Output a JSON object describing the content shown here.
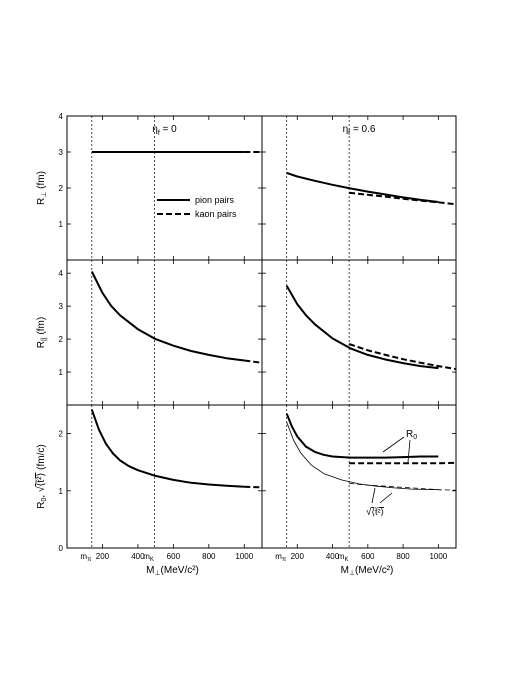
{
  "chart_data": {
    "type": "line",
    "layout": "3x2 panel grid with shared axes",
    "xlabel_main": "M",
    "xlabel_sub": "⊥",
    "xlabel_unit": "(MeV/c²)",
    "xlim": [
      0,
      1100
    ],
    "x_ticks": [
      "200",
      "400",
      "600",
      "800",
      "1000"
    ],
    "x_markers": [
      {
        "main": "m",
        "sub": "π",
        "value": 140
      },
      {
        "main": "m",
        "sub": "K",
        "value": 494
      }
    ],
    "columns": [
      {
        "title_main": "η",
        "title_sub": "f",
        "title_rest": " = 0"
      },
      {
        "title_main": "η",
        "title_sub": "f",
        "title_rest": " = 0.6"
      }
    ],
    "legend": {
      "position": "center-right of top-left panel",
      "entries": [
        {
          "label": "pion pairs",
          "style": "solid"
        },
        {
          "label": "kaon pairs",
          "style": "dashed"
        }
      ]
    },
    "rows": [
      {
        "ylabel_main": "R",
        "ylabel_sub": "⊥",
        "ylabel_unit": " (fm)",
        "ylim": [
          0,
          4
        ],
        "y_ticks": [
          "1",
          "2",
          "3",
          "4"
        ],
        "panels": [
          {
            "series": [
              {
                "style": "solid-bold",
                "x": [
                  140,
                  300,
                  500,
                  700,
                  900,
                  1000
                ],
                "y": [
                  3.0,
                  3.0,
                  3.0,
                  3.0,
                  3.0,
                  3.0
                ]
              },
              {
                "style": "dashed-bold",
                "x": [
                  1000,
                  1100
                ],
                "y": [
                  3.0,
                  3.0
                ]
              }
            ]
          },
          {
            "series": [
              {
                "style": "solid-bold",
                "x": [
                  140,
                  200,
                  300,
                  400,
                  500,
                  600,
                  700,
                  800,
                  900,
                  1000
                ],
                "y": [
                  2.42,
                  2.32,
                  2.2,
                  2.09,
                  1.99,
                  1.9,
                  1.82,
                  1.74,
                  1.67,
                  1.61
                ]
              },
              {
                "style": "dashed-bold",
                "x": [
                  494,
                  600,
                  700,
                  800,
                  900,
                  1000,
                  1100
                ],
                "y": [
                  1.87,
                  1.81,
                  1.76,
                  1.7,
                  1.65,
                  1.6,
                  1.55
                ]
              }
            ]
          }
        ]
      },
      {
        "ylabel_main": "R",
        "ylabel_sub": "||",
        "ylabel_unit": " (fm)",
        "ylim": [
          0,
          4.4
        ],
        "y_ticks": [
          "1",
          "2",
          "3",
          "4"
        ],
        "panels": [
          {
            "series": [
              {
                "style": "solid-bold",
                "x": [
                  140,
                  200,
                  250,
                  300,
                  400,
                  500,
                  600,
                  700,
                  800,
                  900,
                  1000
                ],
                "y": [
                  4.05,
                  3.4,
                  3.0,
                  2.72,
                  2.3,
                  2.0,
                  1.8,
                  1.64,
                  1.52,
                  1.42,
                  1.35
                ]
              },
              {
                "style": "dashed-bold",
                "x": [
                  1000,
                  1100
                ],
                "y": [
                  1.35,
                  1.28
                ]
              }
            ]
          },
          {
            "series": [
              {
                "style": "solid-bold",
                "x": [
                  140,
                  200,
                  250,
                  300,
                  400,
                  500,
                  600,
                  700,
                  800,
                  900,
                  1000
                ],
                "y": [
                  3.62,
                  3.06,
                  2.72,
                  2.45,
                  2.02,
                  1.72,
                  1.52,
                  1.38,
                  1.27,
                  1.18,
                  1.12
                ]
              },
              {
                "style": "dashed-bold",
                "x": [
                  494,
                  600,
                  700,
                  800,
                  900,
                  1000,
                  1100
                ],
                "y": [
                  1.85,
                  1.66,
                  1.52,
                  1.39,
                  1.28,
                  1.18,
                  1.09
                ]
              }
            ]
          }
        ]
      },
      {
        "ylabel_main": "R",
        "ylabel_sub": "0",
        "ylabel_rest": ", ",
        "ylabel_sqrt": "⟨t̃²⟩",
        "ylabel_unit": " (fm/c)",
        "ylim": [
          0,
          2.5
        ],
        "y_ticks": [
          "0",
          "1",
          "2"
        ],
        "panels": [
          {
            "series": [
              {
                "style": "solid-bold",
                "x": [
                  140,
                  180,
                  220,
                  260,
                  300,
                  350,
                  400,
                  500,
                  600,
                  700,
                  800,
                  900,
                  1000
                ],
                "y": [
                  2.42,
                  2.07,
                  1.82,
                  1.65,
                  1.53,
                  1.43,
                  1.36,
                  1.26,
                  1.19,
                  1.14,
                  1.11,
                  1.09,
                  1.07
                ]
              },
              {
                "style": "dashed-bold",
                "x": [
                  1000,
                  1100
                ],
                "y": [
                  1.07,
                  1.06
                ]
              }
            ]
          },
          {
            "annotations": [
              {
                "main": "R",
                "sub": "0"
              },
              {
                "main": "√",
                "overline": "⟨t̃²⟩"
              }
            ],
            "series": [
              {
                "style": "solid-bold",
                "x": [
                  140,
                  170,
                  200,
                  250,
                  300,
                  350,
                  400,
                  500,
                  600,
                  700,
                  800,
                  900,
                  1000
                ],
                "y": [
                  2.35,
                  2.12,
                  1.95,
                  1.77,
                  1.68,
                  1.63,
                  1.6,
                  1.58,
                  1.58,
                  1.58,
                  1.59,
                  1.6,
                  1.6
                ]
              },
              {
                "style": "dashed-bold",
                "x": [
                  494,
                  600,
                  700,
                  800,
                  900,
                  1000,
                  1100
                ],
                "y": [
                  1.48,
                  1.48,
                  1.48,
                  1.48,
                  1.48,
                  1.48,
                  1.49
                ]
              },
              {
                "style": "solid-thin",
                "x": [
                  140,
                  180,
                  220,
                  280,
                  350,
                  450,
                  550,
                  650,
                  750,
                  850,
                  1000
                ],
                "y": [
                  2.2,
                  1.88,
                  1.66,
                  1.45,
                  1.3,
                  1.19,
                  1.12,
                  1.08,
                  1.05,
                  1.03,
                  1.02
                ]
              },
              {
                "style": "dashed-thin",
                "x": [
                  494,
                  600,
                  700,
                  800,
                  900,
                  1000,
                  1100
                ],
                "y": [
                  1.13,
                  1.1,
                  1.08,
                  1.06,
                  1.04,
                  1.02,
                  1.01
                ]
              }
            ]
          }
        ]
      }
    ]
  }
}
